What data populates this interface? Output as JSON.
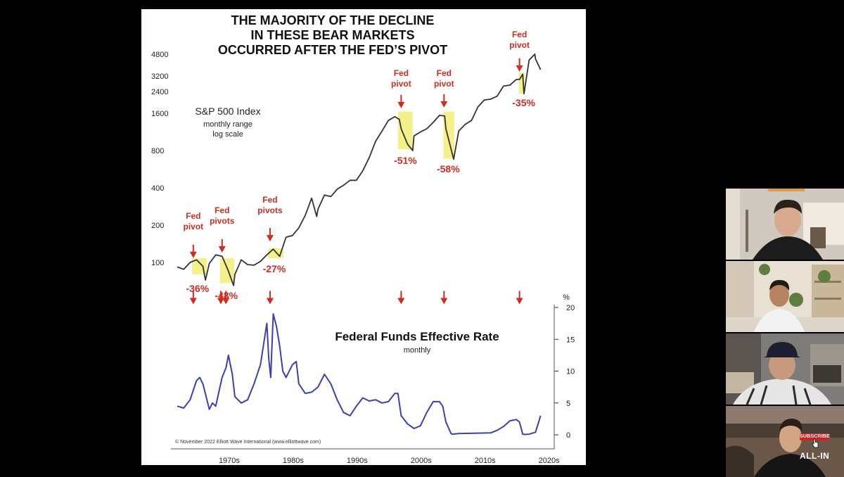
{
  "chart": {
    "title_lines": [
      "THE MAJORITY OF THE DECLINE",
      "IN THESE BEAR MARKETS",
      "OCCURRED AFTER THE FED’S PIVOT"
    ],
    "top_label": "S&P 500 Index",
    "top_sublabel_1": "monthly range",
    "top_sublabel_2": "log scale",
    "bottom_label": "Federal Funds Effective Rate",
    "bottom_sublabel": "monthly",
    "copyright": "© November 2022 Elliott Wave International (www.elliottwave.com)",
    "percent_unit": "%",
    "highlight_color": "#f4f08a",
    "annotation_color": "#d42a1f",
    "sp_color": "#333333",
    "rate_color": "#3a3fb8"
  },
  "chart_data": [
    {
      "type": "line",
      "title": "S&P 500 Index",
      "scale": "log",
      "y_ticks": [
        100,
        200,
        400,
        800,
        1600,
        2400,
        3200,
        4800
      ],
      "x": [
        1966,
        1967,
        1968,
        1969,
        1970,
        1970.4,
        1971,
        1972,
        1973,
        1974,
        1974.8,
        1975,
        1976,
        1977,
        1978,
        1979,
        1980,
        1981,
        1982,
        1983,
        1984,
        1985,
        1986,
        1987,
        1987.8,
        1988,
        1989,
        1990,
        1991,
        1992,
        1993,
        1994,
        1995,
        1996,
        1997,
        1998,
        1999,
        2000,
        2000.7,
        2001,
        2002,
        2002.8,
        2003,
        2004,
        2005,
        2006,
        2007,
        2007.8,
        2008,
        2009.2,
        2010,
        2011,
        2012,
        2013,
        2014,
        2015,
        2016,
        2017,
        2018,
        2019,
        2019.5,
        2020,
        2020.2,
        2021,
        2021.9,
        2022,
        2022.8
      ],
      "values": [
        92,
        88,
        100,
        105,
        93,
        72,
        98,
        115,
        112,
        85,
        65,
        80,
        105,
        96,
        95,
        102,
        115,
        128,
        112,
        160,
        165,
        190,
        240,
        330,
        235,
        270,
        350,
        340,
        390,
        420,
        460,
        460,
        550,
        700,
        950,
        1150,
        1400,
        1500,
        1430,
        1200,
        900,
        800,
        1050,
        1130,
        1200,
        1350,
        1540,
        1520,
        1200,
        680,
        1150,
        1300,
        1400,
        1800,
        2050,
        2080,
        2200,
        2650,
        2700,
        3000,
        3000,
        3300,
        2300,
        4300,
        4800,
        4400,
        3600
      ],
      "annotations": [
        {
          "label": "Fed pivot",
          "decline": "-36%",
          "year": 1968.5
        },
        {
          "label": "Fed pivots",
          "decline": "-48%",
          "year": 1973
        },
        {
          "label": "Fed pivots",
          "decline": "-27%",
          "year": 1980.5
        },
        {
          "label": "Fed pivot",
          "decline": "-51%",
          "year": 2001
        },
        {
          "label": "Fed pivot",
          "decline": "-58%",
          "year": 2007.7
        },
        {
          "label": "Fed pivot",
          "decline": "-35%",
          "year": 2019.5
        }
      ]
    },
    {
      "type": "line",
      "title": "Federal Funds Effective Rate",
      "unit": "%",
      "ylim": [
        0,
        20
      ],
      "y_ticks": [
        0,
        5,
        10,
        15,
        20
      ],
      "x": [
        1966,
        1967,
        1968,
        1969,
        1969.5,
        1970,
        1971,
        1971.5,
        1972,
        1973,
        1973.6,
        1974,
        1974.6,
        1975,
        1976,
        1977,
        1978,
        1979,
        1980,
        1980.3,
        1980.6,
        1981,
        1981.5,
        1982,
        1982.5,
        1983,
        1984,
        1984.6,
        1985,
        1986,
        1987,
        1988,
        1989,
        1990,
        1991,
        1992,
        1993,
        1994,
        1995,
        1996,
        1997,
        1998,
        1999,
        2000,
        2000.5,
        2001,
        2002,
        2003,
        2004,
        2005,
        2006,
        2007,
        2007.5,
        2008,
        2008.8,
        2009,
        2010,
        2015,
        2016,
        2017,
        2018,
        2019,
        2019.5,
        2020,
        2020.3,
        2021,
        2022,
        2022.8
      ],
      "values": [
        4.5,
        4.2,
        5.5,
        8.5,
        9.0,
        8.0,
        4.0,
        5.0,
        4.5,
        9.0,
        10.5,
        12.5,
        9.5,
        6.0,
        5.0,
        5.5,
        8.0,
        11.0,
        17.5,
        12.0,
        9.0,
        19.0,
        17.0,
        14.0,
        10.0,
        9.0,
        11.0,
        11.5,
        8.0,
        6.5,
        6.7,
        7.5,
        9.5,
        8.0,
        5.5,
        3.5,
        3.0,
        4.5,
        5.8,
        5.3,
        5.5,
        5.0,
        5.2,
        6.5,
        6.5,
        3.0,
        1.7,
        1.0,
        1.4,
        3.5,
        5.2,
        5.2,
        4.5,
        2.0,
        0.2,
        0.1,
        0.2,
        0.3,
        0.7,
        1.3,
        2.2,
        2.4,
        2.0,
        0.1,
        0.05,
        0.1,
        0.4,
        3.0
      ],
      "pivot_years": [
        1968.5,
        1972.8,
        1973.6,
        1980.5,
        2001,
        2007.7,
        2019.5
      ]
    }
  ],
  "x_axis": {
    "labels": [
      "1970s",
      "1980s",
      "1990s",
      "2000s",
      "2010s",
      "2020s"
    ]
  },
  "overlay": {
    "subscribe_label": "SUBSCRIBE",
    "logo_text": "ALL-IN"
  }
}
